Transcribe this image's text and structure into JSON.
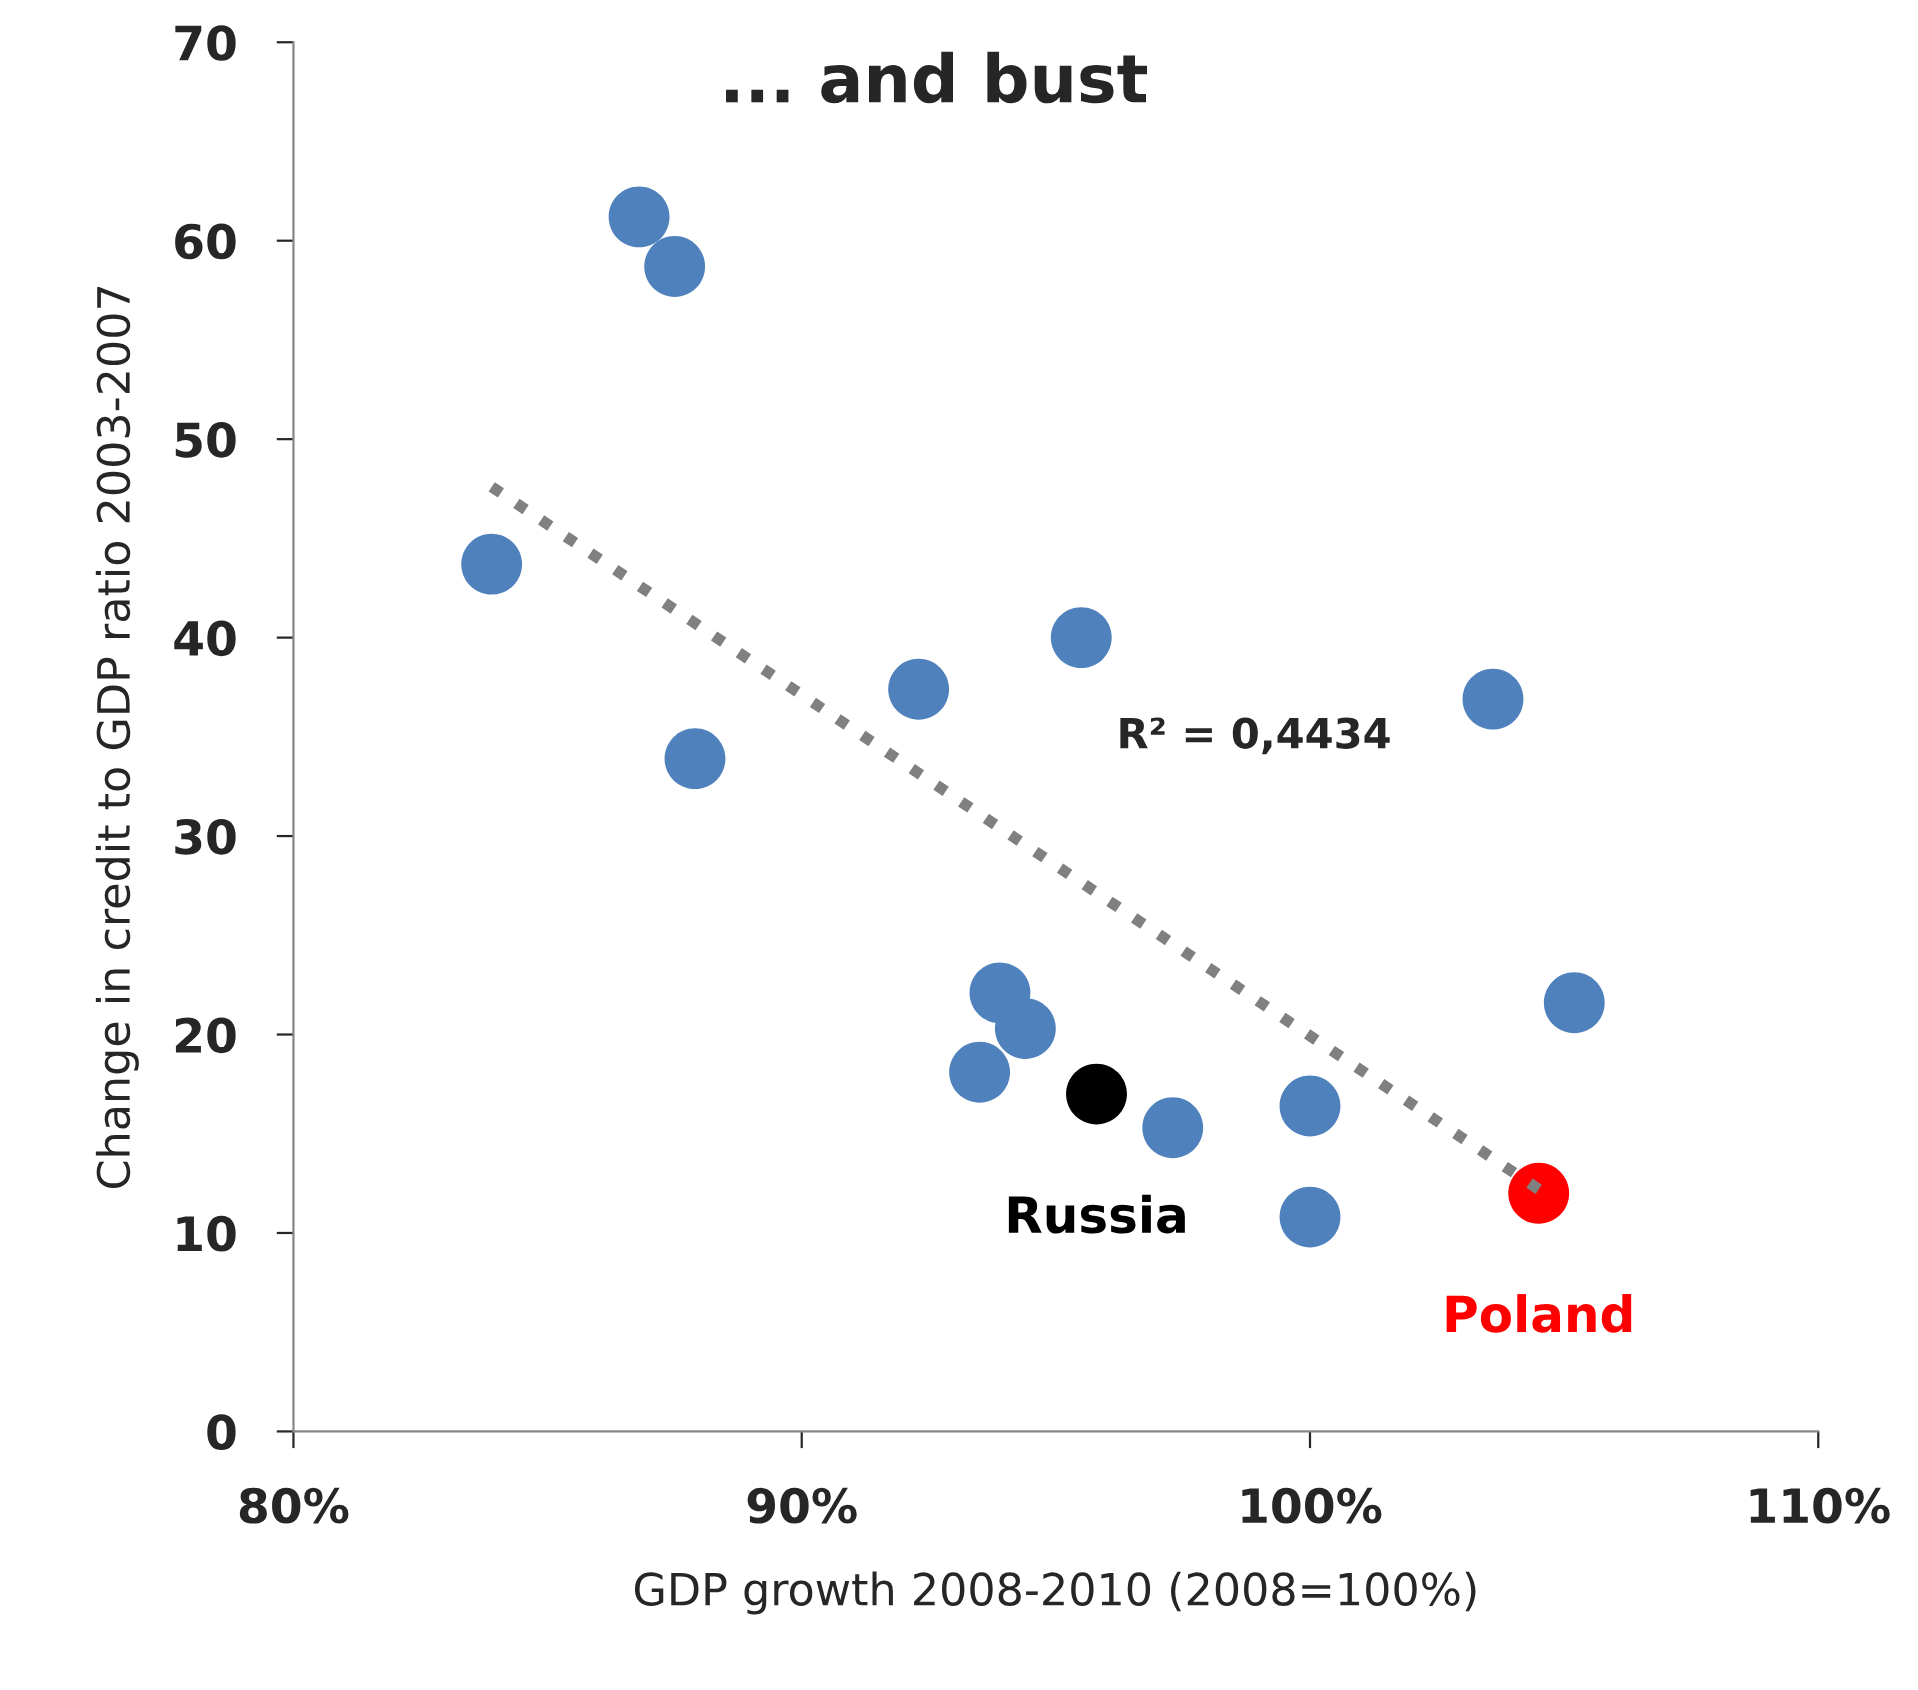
{
  "chart_data": {
    "type": "scatter",
    "title": "... and bust",
    "xlabel": "GDP growth 2008-2010 (2008=100%)",
    "ylabel": "Change in credit to GDP ratio 2003-2007",
    "series": [
      {
        "color": "#4f81bd",
        "x": [
          83.9,
          86.8,
          87.5,
          87.9,
          92.3,
          95.5,
          93.9,
          94.4,
          93.5,
          97.3,
          100.0,
          100.0,
          103.6,
          105.2
        ],
        "values": [
          43.7,
          61.2,
          58.7,
          33.9,
          37.4,
          40.0,
          22.1,
          20.3,
          18.1,
          15.3,
          16.4,
          10.8,
          36.9,
          21.6
        ]
      },
      {
        "name": "Russia",
        "color": "#000000",
        "x": [
          95.8
        ],
        "values": [
          17.0
        ]
      },
      {
        "name": "Poland",
        "color": "#ff0000",
        "x": [
          104.5
        ],
        "values": [
          12.0
        ]
      },
      {
        "type": "line",
        "color": "#808080",
        "line_style": "dotted",
        "marker": "none",
        "x": [
          83.9,
          104.5
        ],
        "values": [
          47.6,
          12.2
        ]
      }
    ],
    "annotations": [
      "R² = 0,4434"
    ],
    "xlim": [
      80,
      110
    ],
    "ylim": [
      0,
      70
    ],
    "xticks": [
      {
        "value": 80,
        "label": "80%"
      },
      {
        "value": 90,
        "label": "90%"
      },
      {
        "value": 100,
        "label": "100%"
      },
      {
        "value": 110,
        "label": "110%"
      }
    ],
    "yticks": [
      0,
      10,
      20,
      30,
      40,
      50,
      60,
      70
    ],
    "marker": "circle",
    "grid": false,
    "legend": false
  }
}
